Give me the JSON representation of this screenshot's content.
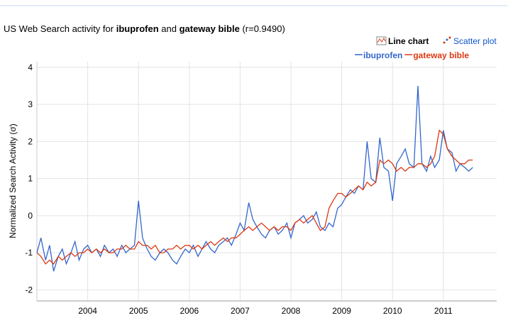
{
  "controls": [
    "Line chart",
    "Scatter plot"
  ],
  "chart_data": {
    "type": "line",
    "title": [
      "US Web Search activity for ",
      "ibuprofen",
      " and ",
      "gateway bible",
      " (r=0.9490)"
    ],
    "ylabel": "Normalized Search Activity (σ)",
    "x": [
      2003.0,
      2003.08,
      2003.17,
      2003.25,
      2003.33,
      2003.42,
      2003.5,
      2003.58,
      2003.67,
      2003.75,
      2003.83,
      2003.92,
      2004.0,
      2004.08,
      2004.17,
      2004.25,
      2004.33,
      2004.42,
      2004.5,
      2004.58,
      2004.67,
      2004.75,
      2004.83,
      2004.92,
      2005.0,
      2005.08,
      2005.17,
      2005.25,
      2005.33,
      2005.42,
      2005.5,
      2005.58,
      2005.67,
      2005.75,
      2005.83,
      2005.92,
      2006.0,
      2006.08,
      2006.17,
      2006.25,
      2006.33,
      2006.42,
      2006.5,
      2006.58,
      2006.67,
      2006.75,
      2006.83,
      2006.92,
      2007.0,
      2007.08,
      2007.17,
      2007.25,
      2007.33,
      2007.42,
      2007.5,
      2007.58,
      2007.67,
      2007.75,
      2007.83,
      2007.92,
      2008.0,
      2008.08,
      2008.17,
      2008.25,
      2008.33,
      2008.42,
      2008.5,
      2008.58,
      2008.67,
      2008.75,
      2008.83,
      2008.92,
      2009.0,
      2009.08,
      2009.17,
      2009.25,
      2009.33,
      2009.42,
      2009.5,
      2009.58,
      2009.67,
      2009.75,
      2009.83,
      2009.92,
      2010.0,
      2010.08,
      2010.17,
      2010.25,
      2010.33,
      2010.42,
      2010.5,
      2010.58,
      2010.67,
      2010.75,
      2010.83,
      2010.92,
      2011.0,
      2011.08,
      2011.17,
      2011.25,
      2011.33,
      2011.42,
      2011.5,
      2011.58
    ],
    "series": [
      {
        "name": "ibuprofen",
        "color": "#3366cc",
        "values": [
          -1.0,
          -0.6,
          -1.2,
          -0.8,
          -1.5,
          -1.1,
          -0.9,
          -1.3,
          -1.0,
          -0.7,
          -1.2,
          -0.9,
          -0.8,
          -1.0,
          -0.9,
          -1.1,
          -0.8,
          -1.0,
          -0.9,
          -1.1,
          -0.8,
          -1.0,
          -0.9,
          -0.8,
          0.4,
          -0.6,
          -0.9,
          -1.1,
          -1.2,
          -1.0,
          -0.9,
          -1.0,
          -1.2,
          -1.3,
          -1.1,
          -0.9,
          -1.0,
          -0.8,
          -1.1,
          -0.9,
          -0.7,
          -0.9,
          -1.0,
          -0.8,
          -0.7,
          -0.6,
          -0.8,
          -0.5,
          -0.2,
          -0.4,
          0.35,
          -0.1,
          -0.3,
          -0.5,
          -0.6,
          -0.4,
          -0.3,
          -0.5,
          -0.4,
          -0.2,
          -0.6,
          -0.2,
          -0.1,
          0.0,
          -0.2,
          -0.1,
          0.1,
          -0.3,
          -0.4,
          -0.2,
          -0.3,
          0.2,
          0.3,
          0.5,
          0.7,
          0.6,
          0.8,
          0.7,
          2.0,
          1.0,
          0.9,
          2.1,
          1.3,
          1.2,
          0.4,
          1.4,
          1.6,
          1.8,
          1.4,
          1.3,
          3.5,
          1.4,
          1.2,
          1.6,
          1.3,
          1.5,
          2.3,
          1.8,
          1.7,
          1.2,
          1.4,
          1.3,
          1.2,
          1.3
        ]
      },
      {
        "name": "gateway bible",
        "color": "#dc3912",
        "values": [
          -1.0,
          -1.1,
          -1.3,
          -1.2,
          -1.3,
          -1.1,
          -1.2,
          -1.1,
          -1.0,
          -1.1,
          -1.0,
          -1.0,
          -0.9,
          -1.0,
          -0.9,
          -1.0,
          -0.9,
          -1.0,
          -1.0,
          -0.9,
          -0.9,
          -0.8,
          -0.9,
          -0.9,
          -0.7,
          -0.8,
          -0.8,
          -0.9,
          -0.8,
          -1.0,
          -1.0,
          -0.9,
          -0.9,
          -0.8,
          -0.9,
          -0.8,
          -0.8,
          -0.9,
          -0.8,
          -0.9,
          -0.8,
          -0.7,
          -0.8,
          -0.7,
          -0.6,
          -0.7,
          -0.6,
          -0.6,
          -0.5,
          -0.4,
          -0.3,
          -0.4,
          -0.3,
          -0.2,
          -0.3,
          -0.4,
          -0.3,
          -0.4,
          -0.3,
          -0.3,
          -0.4,
          -0.2,
          -0.1,
          -0.2,
          -0.1,
          0.0,
          -0.2,
          -0.4,
          -0.3,
          0.2,
          0.4,
          0.6,
          0.6,
          0.5,
          0.6,
          0.7,
          0.8,
          0.7,
          0.9,
          0.8,
          0.9,
          1.5,
          1.4,
          1.5,
          1.4,
          1.2,
          1.3,
          1.2,
          1.3,
          1.3,
          1.4,
          1.4,
          1.3,
          1.4,
          1.6,
          2.3,
          2.2,
          1.8,
          1.6,
          1.5,
          1.4,
          1.4,
          1.5,
          1.5
        ]
      }
    ],
    "xlim": [
      2003.0,
      2012.05
    ],
    "xticks": [
      2004,
      2005,
      2006,
      2007,
      2008,
      2009,
      2010,
      2011
    ],
    "ylim": [
      -2.3,
      4.15
    ],
    "yticks": [
      -2,
      -1,
      0,
      1,
      2,
      3,
      4
    ],
    "grid": true
  }
}
